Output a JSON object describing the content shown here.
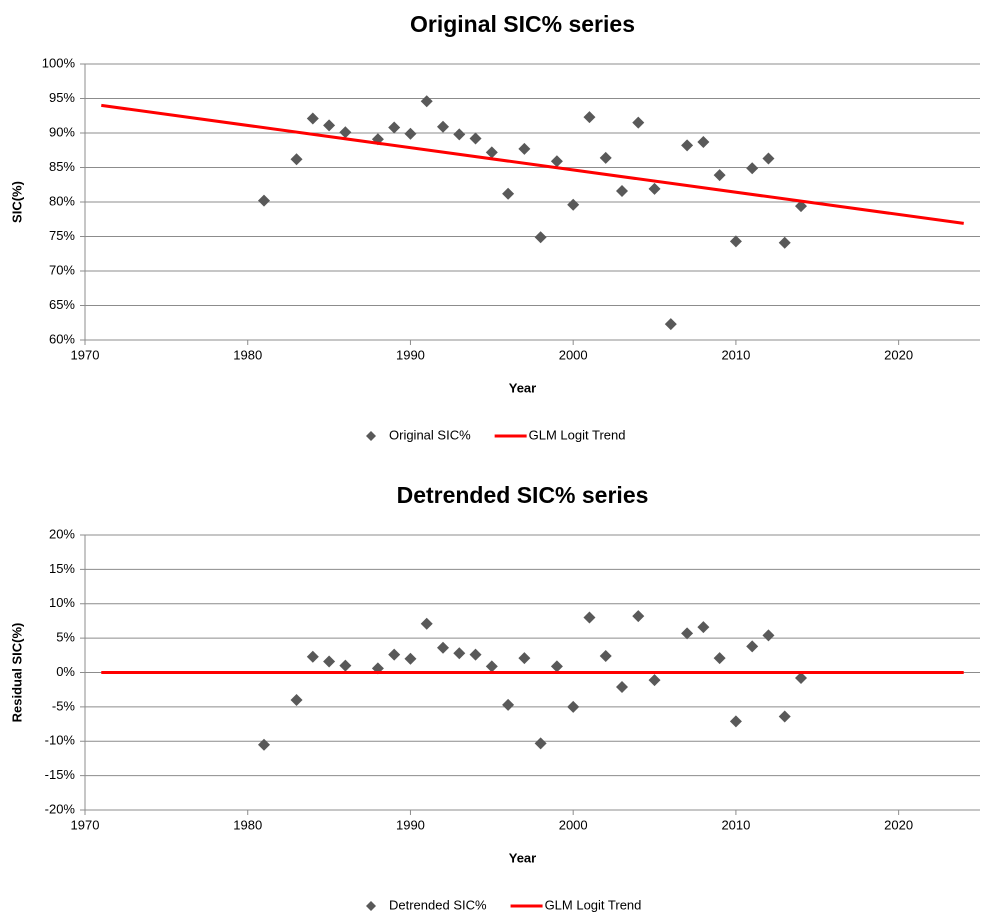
{
  "chart_data": [
    {
      "type": "scatter",
      "title": "Original SIC% series",
      "xlabel": "Year",
      "ylabel": "SIC(%)",
      "xlim": [
        1970,
        2025
      ],
      "xticks": [
        1970,
        1980,
        1990,
        2000,
        2010,
        2020
      ],
      "ylim": [
        60,
        100
      ],
      "yticks": [
        {
          "value": 60,
          "label": "60%"
        },
        {
          "value": 65,
          "label": "65%"
        },
        {
          "value": 70,
          "label": "70%"
        },
        {
          "value": 75,
          "label": "75%"
        },
        {
          "value": 80,
          "label": "80%"
        },
        {
          "value": 85,
          "label": "85%"
        },
        {
          "value": 90,
          "label": "90%"
        },
        {
          "value": 95,
          "label": "95%"
        },
        {
          "value": 100,
          "label": "100%"
        }
      ],
      "grid": true,
      "series": [
        {
          "name": "Original SIC%",
          "type": "scatter",
          "color": "#595959",
          "x": [
            1981,
            1983,
            1984,
            1985,
            1986,
            1988,
            1989,
            1990,
            1991,
            1992,
            1993,
            1994,
            1995,
            1996,
            1997,
            1998,
            1999,
            2000,
            2001,
            2002,
            2003,
            2004,
            2005,
            2006,
            2007,
            2008,
            2009,
            2010,
            2011,
            2012,
            2013,
            2014
          ],
          "values": [
            80.2,
            86.2,
            92.1,
            91.1,
            90.1,
            89.1,
            90.8,
            89.9,
            94.6,
            90.9,
            89.8,
            89.2,
            87.2,
            81.2,
            87.7,
            74.9,
            85.9,
            79.6,
            92.3,
            86.4,
            81.6,
            91.5,
            81.9,
            62.3,
            88.2,
            88.7,
            83.9,
            74.3,
            84.9,
            86.3,
            74.1,
            79.4
          ]
        },
        {
          "name": "GLM Logit Trend",
          "type": "line",
          "color": "#ff0000",
          "x": [
            1971,
            2024
          ],
          "values": [
            94.0,
            76.9
          ]
        }
      ]
    },
    {
      "type": "scatter",
      "title": "Detrended SIC% series",
      "xlabel": "Year",
      "ylabel": "Residual SIC(%)",
      "xlim": [
        1970,
        2025
      ],
      "xticks": [
        1970,
        1980,
        1990,
        2000,
        2010,
        2020
      ],
      "ylim": [
        -20,
        20
      ],
      "yticks": [
        {
          "value": -20,
          "label": "-20%"
        },
        {
          "value": -15,
          "label": "-15%"
        },
        {
          "value": -10,
          "label": "-10%"
        },
        {
          "value": -5,
          "label": "-5%"
        },
        {
          "value": 0,
          "label": "0%"
        },
        {
          "value": 5,
          "label": "5%"
        },
        {
          "value": 10,
          "label": "10%"
        },
        {
          "value": 15,
          "label": "15%"
        },
        {
          "value": 20,
          "label": "20%"
        }
      ],
      "grid": true,
      "series": [
        {
          "name": "Detrended SIC%",
          "type": "scatter",
          "color": "#595959",
          "x": [
            1981,
            1983,
            1984,
            1985,
            1986,
            1988,
            1989,
            1990,
            1991,
            1992,
            1993,
            1994,
            1995,
            1996,
            1997,
            1998,
            1999,
            2000,
            2001,
            2002,
            2003,
            2004,
            2005,
            2007,
            2008,
            2009,
            2010,
            2011,
            2012,
            2013,
            2014
          ],
          "values": [
            -10.5,
            -4.0,
            2.3,
            1.6,
            1.0,
            0.6,
            2.6,
            2.0,
            7.1,
            3.6,
            2.8,
            2.6,
            0.9,
            -4.7,
            2.1,
            -10.3,
            0.9,
            -5.0,
            8.0,
            2.4,
            -2.1,
            8.2,
            -1.1,
            5.7,
            6.6,
            2.1,
            -7.1,
            3.8,
            5.4,
            -6.4,
            -0.8
          ]
        },
        {
          "name": "GLM Logit Trend",
          "type": "line",
          "color": "#ff0000",
          "x": [
            1971,
            2024
          ],
          "values": [
            0,
            0
          ]
        }
      ]
    }
  ]
}
